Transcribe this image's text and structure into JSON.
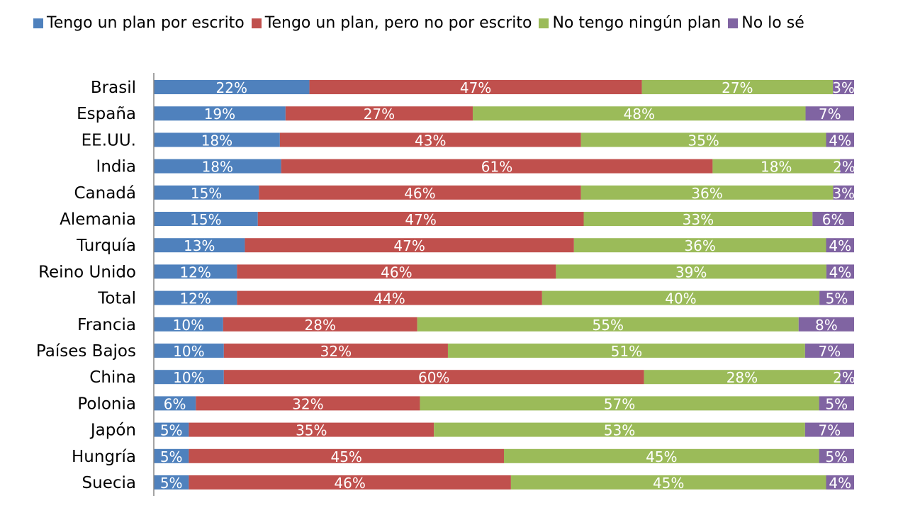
{
  "chart_data": {
    "type": "bar",
    "orientation": "horizontal",
    "stacked": "percent",
    "legend_position": "top",
    "grid": false,
    "categories": [
      "Brasil",
      "España",
      "EE.UU.",
      "India",
      "Canadá",
      "Alemania",
      "Turquía",
      "Reino Unido",
      "Total",
      "Francia",
      "Países Bajos",
      "China",
      "Polonia",
      "Japón",
      "Hungría",
      "Suecia"
    ],
    "series": [
      {
        "name": "Tengo un plan por escrito",
        "color": "#4F81BD",
        "values": [
          22,
          19,
          18,
          18,
          15,
          15,
          13,
          12,
          12,
          10,
          10,
          10,
          6,
          5,
          5,
          5
        ]
      },
      {
        "name": "Tengo un plan, pero no por escrito",
        "color": "#C0504D",
        "values": [
          47,
          27,
          43,
          61,
          46,
          47,
          47,
          46,
          44,
          28,
          32,
          60,
          32,
          35,
          45,
          46
        ]
      },
      {
        "name": "No tengo ningún plan",
        "color": "#9BBB59",
        "values": [
          27,
          48,
          35,
          18,
          36,
          33,
          36,
          39,
          40,
          55,
          51,
          28,
          57,
          53,
          45,
          45
        ]
      },
      {
        "name": "No lo sé",
        "color": "#8064A2",
        "values": [
          3,
          7,
          4,
          2,
          3,
          6,
          4,
          4,
          5,
          8,
          7,
          2,
          5,
          7,
          5,
          4
        ]
      }
    ],
    "value_suffix": "%"
  }
}
